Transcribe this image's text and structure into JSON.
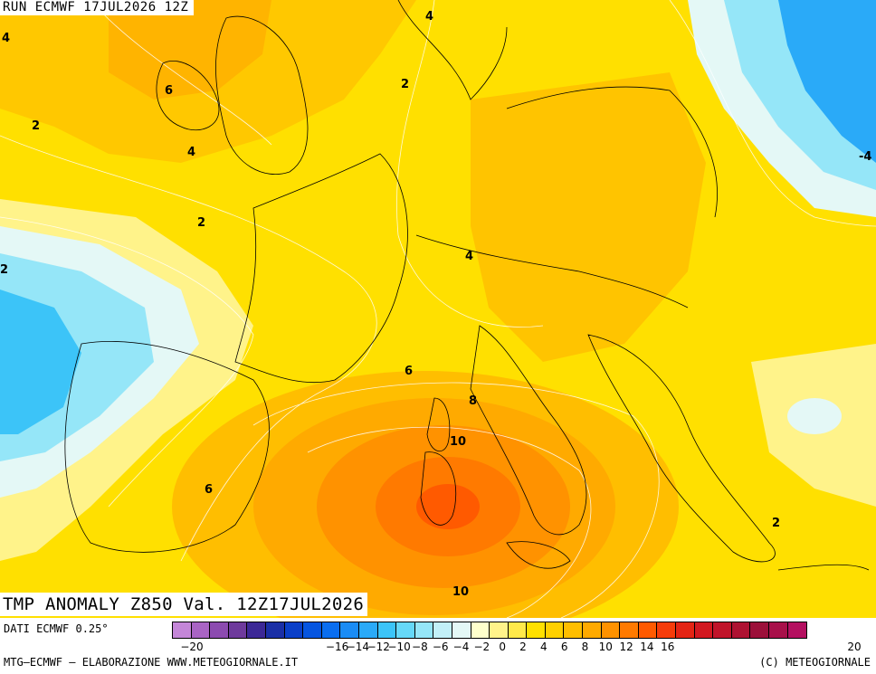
{
  "header": {
    "run_title": "RUN ECMWF 17JUL2026 12Z",
    "anomaly_title": "TMP ANOMALY Z850 Val. 12Z17JUL2026"
  },
  "map": {
    "contour_labels": [
      {
        "text": "4"
      },
      {
        "text": "4"
      },
      {
        "text": "6"
      },
      {
        "text": "2"
      },
      {
        "text": "2"
      },
      {
        "text": "4"
      },
      {
        "text": "-4"
      },
      {
        "text": "2"
      },
      {
        "text": "2"
      },
      {
        "text": "4"
      },
      {
        "text": "6"
      },
      {
        "text": "8"
      },
      {
        "text": "10"
      },
      {
        "text": "6"
      },
      {
        "text": "2"
      },
      {
        "text": "10"
      }
    ]
  },
  "legend": {
    "data_source": "DATI ECMWF 0.25°",
    "footer_left": "MTG–ECMWF – ELABORAZIONE WWW.METEOGIORNALE.IT",
    "footer_right": "(C) METEOGIORNALE",
    "colors": [
      "#c486d8",
      "#a964c4",
      "#8c4bb0",
      "#6e3a9c",
      "#3c2896",
      "#1a2fa6",
      "#0a3fc8",
      "#0655e0",
      "#0a6ef0",
      "#1a8cf5",
      "#2aaaf8",
      "#3cc4f8",
      "#66d8f8",
      "#95e6f8",
      "#c2f0f8",
      "#e4f8f6",
      "#ffffcc",
      "#fff38a",
      "#ffe94a",
      "#ffe000",
      "#ffd000",
      "#ffbe00",
      "#ffaa00",
      "#ff9200",
      "#ff7a00",
      "#ff5a00",
      "#f63c0a",
      "#e42414",
      "#d21820",
      "#c0142a",
      "#ae1232",
      "#9c103a",
      "#a8104a",
      "#b41060"
    ],
    "ticks": [
      {
        "text": "−20",
        "value": -20
      },
      {
        "text": "−16",
        "value": -16
      },
      {
        "text": "−14",
        "value": -14
      },
      {
        "text": "−12",
        "value": -12
      },
      {
        "text": "−10",
        "value": -10
      },
      {
        "text": "−8",
        "value": -8
      },
      {
        "text": "−6",
        "value": -6
      },
      {
        "text": "−4",
        "value": -4
      },
      {
        "text": "−2",
        "value": -2
      },
      {
        "text": "0",
        "value": 0
      },
      {
        "text": "2",
        "value": 2
      },
      {
        "text": "4",
        "value": 4
      },
      {
        "text": "6",
        "value": 6
      },
      {
        "text": "8",
        "value": 8
      },
      {
        "text": "10",
        "value": 10
      },
      {
        "text": "12",
        "value": 12
      },
      {
        "text": "14",
        "value": 14
      },
      {
        "text": "16",
        "value": 16
      },
      {
        "text": "20",
        "value": 20
      }
    ]
  }
}
